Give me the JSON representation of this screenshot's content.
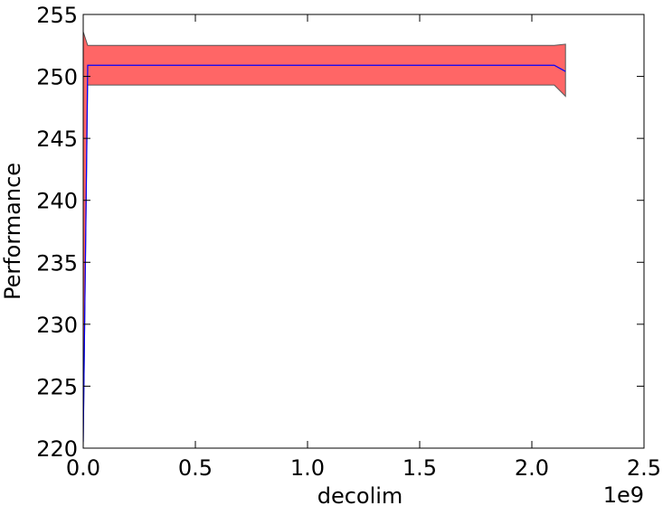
{
  "chart_data": {
    "type": "line_band",
    "xlabel": "decolim",
    "ylabel": "Performance",
    "x_offset_label": "1e9",
    "x": [
      0,
      20000000,
      2100000000,
      2150000000
    ],
    "series": [
      {
        "color": "#0000ff",
        "values": [
          220.5,
          250.9,
          250.9,
          250.4
        ]
      }
    ],
    "band": {
      "color": "#ff6666",
      "edge_color": "#555555",
      "upper": [
        253.6,
        252.5,
        252.5,
        252.6
      ],
      "lower": [
        220,
        249.3,
        249.3,
        248.4
      ]
    },
    "xlim": [
      0,
      2500000000
    ],
    "xticks": [
      {
        "value": 0,
        "label": "0.0"
      },
      {
        "value": 500000000,
        "label": "0.5"
      },
      {
        "value": 1000000000,
        "label": "1.0"
      },
      {
        "value": 1500000000,
        "label": "1.5"
      },
      {
        "value": 2000000000,
        "label": "2.0"
      },
      {
        "value": 2500000000,
        "label": "2.5"
      }
    ],
    "ylim": [
      220,
      255
    ],
    "yticks": [
      220,
      225,
      230,
      235,
      240,
      245,
      250,
      255
    ],
    "grid": false
  }
}
